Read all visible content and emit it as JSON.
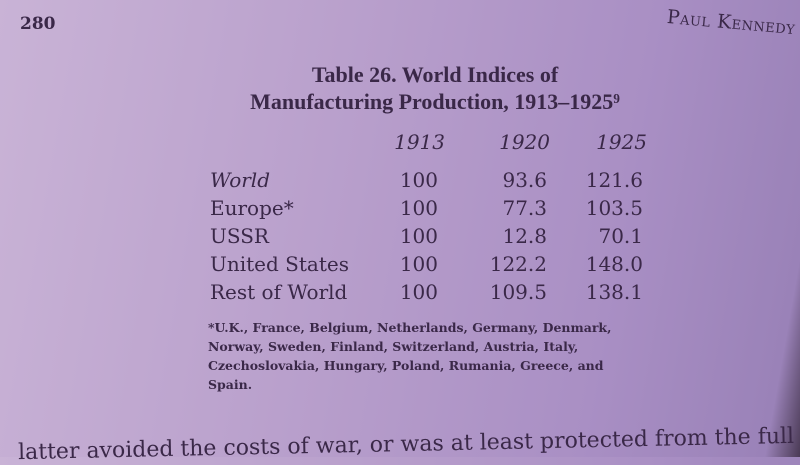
{
  "page": {
    "number": "280",
    "running_head": "Paul Kennedy"
  },
  "table": {
    "title_line1": "Table 26. World Indices of",
    "title_line2": "Manufacturing Production, 1913–1925⁹",
    "columns": [
      "1913",
      "1920",
      "1925"
    ],
    "rows": [
      {
        "label": "World",
        "values": [
          "100",
          "93.6",
          "121.6"
        ]
      },
      {
        "label": "Europe*",
        "values": [
          "100",
          "77.3",
          "103.5"
        ]
      },
      {
        "label": "USSR",
        "values": [
          "100",
          "12.8",
          "70.1"
        ]
      },
      {
        "label": "United States",
        "values": [
          "100",
          "122.2",
          "148.0"
        ]
      },
      {
        "label": "Rest of World",
        "values": [
          "100",
          "109.5",
          "138.1"
        ]
      }
    ],
    "footnote": "*U.K., France, Belgium, Netherlands, Germany, Denmark, Norway, Sweden, Finland, Switzerland, Austria, Italy, Czechoslovakia, Hungary, Poland, Rumania, Greece, and Spain."
  },
  "body_text": "latter avoided the costs of war, or was at least protected from the full"
}
